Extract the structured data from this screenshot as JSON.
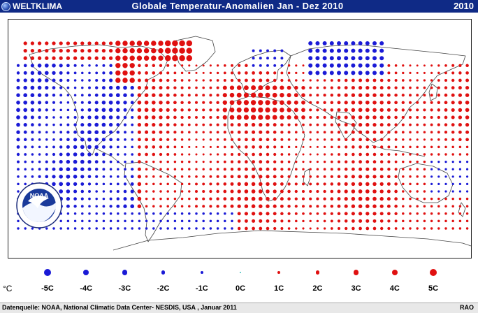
{
  "header": {
    "brand": "WELTKLIMA",
    "title": "Globale Temperatur-Anomalien Jan - Dez 2010",
    "year": "2010"
  },
  "logo": {
    "text": "NOAA"
  },
  "legend": {
    "unit": "°C",
    "items": [
      {
        "label": "-5C",
        "value": -5,
        "color": "#1a1ad6"
      },
      {
        "label": "-4C",
        "value": -4,
        "color": "#1a1ad6"
      },
      {
        "label": "-3C",
        "value": -3,
        "color": "#1a1ad6"
      },
      {
        "label": "-2C",
        "value": -2,
        "color": "#1a1ad6"
      },
      {
        "label": "-1C",
        "value": -1,
        "color": "#1a1ad6"
      },
      {
        "label": "0C",
        "value": 0,
        "color": "#3fbfbf"
      },
      {
        "label": "1C",
        "value": 1,
        "color": "#e01010"
      },
      {
        "label": "2C",
        "value": 2,
        "color": "#e01010"
      },
      {
        "label": "3C",
        "value": 3,
        "color": "#e01010"
      },
      {
        "label": "4C",
        "value": 4,
        "color": "#e01010"
      },
      {
        "label": "5C",
        "value": 5,
        "color": "#e01010"
      }
    ]
  },
  "footer": {
    "source": "Datenquelle: NOAA,  National Climatic Data Center- NESDIS, USA , Januar 2011",
    "credit": "RAO"
  },
  "colors": {
    "warm": "#e01010",
    "cold": "#1a1ad6",
    "neutral": "#3fbfbf",
    "header": "#0f2a86"
  }
}
